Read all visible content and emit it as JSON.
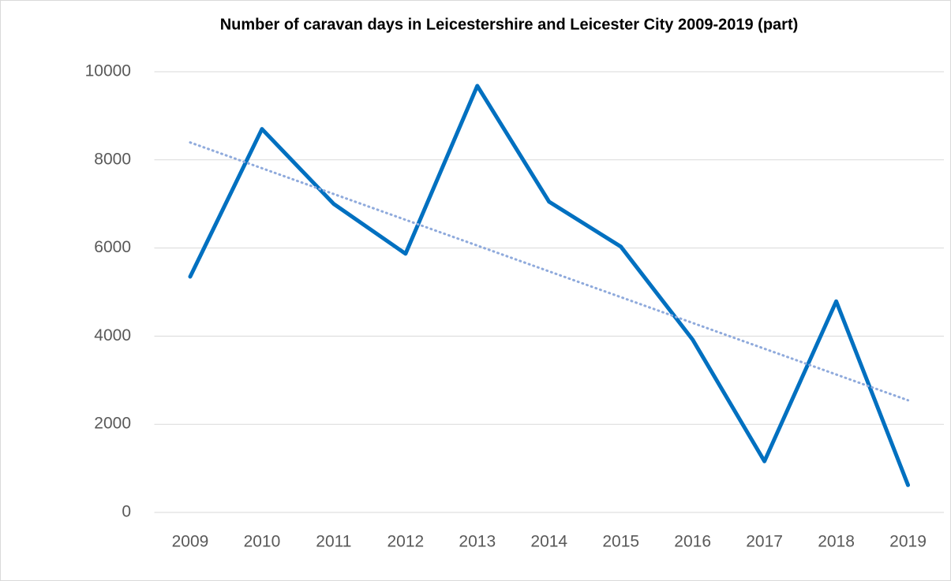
{
  "chart_data": {
    "type": "line",
    "title": "Number of caravan days in Leicestershire and Leicester City 2009-2019 (part)",
    "categories": [
      "2009",
      "2010",
      "2011",
      "2012",
      "2013",
      "2014",
      "2015",
      "2016",
      "2017",
      "2018",
      "2019"
    ],
    "series": [
      {
        "color": "#0070c0",
        "values": [
          5350,
          8700,
          7000,
          5870,
          9680,
          7050,
          6030,
          3920,
          1160,
          4790,
          620
        ]
      }
    ],
    "ylim": [
      0,
      10000
    ],
    "yticks": [
      0,
      2000,
      4000,
      6000,
      8000,
      10000
    ],
    "grid": true,
    "trendline": {
      "type": "linear",
      "color": "#8faadc"
    }
  }
}
